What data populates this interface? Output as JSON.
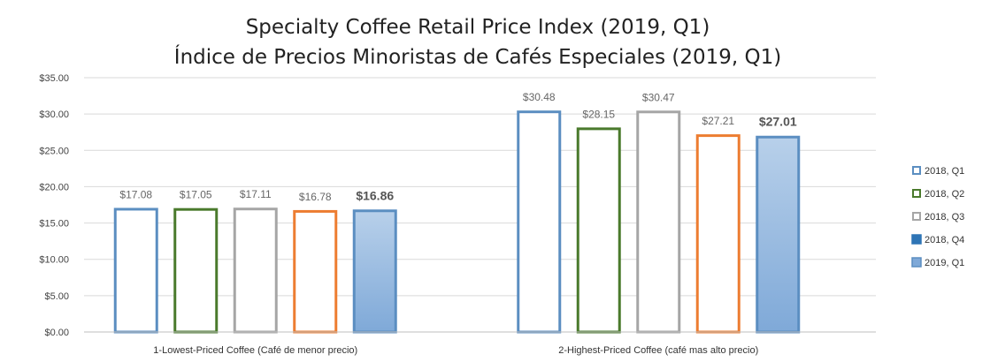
{
  "chart_data": {
    "type": "bar",
    "title": "Specialty Coffee Retail Price Index (2019, Q1)",
    "subtitle": "Índice de Precios Minoristas de Cafés Especiales (2019, Q1)",
    "categories": [
      "1-Lowest-Priced Coffee (Café de menor precio)",
      "2-Highest-Priced Coffee (café mas alto precio)"
    ],
    "series": [
      {
        "name": "2018, Q1",
        "values": [
          17.08,
          30.48
        ],
        "labels": [
          "$17.08",
          "$30.48"
        ],
        "color": "#5b8ec1",
        "style": "outline"
      },
      {
        "name": "2018, Q2",
        "values": [
          17.05,
          28.15
        ],
        "labels": [
          "$17.05",
          "$28.15"
        ],
        "color": "#4a7a2c",
        "style": "outline"
      },
      {
        "name": "2018, Q3",
        "values": [
          17.11,
          30.47
        ],
        "labels": [
          "$17.11",
          "$30.47"
        ],
        "color": "#a6a6a6",
        "style": "outline"
      },
      {
        "name": "2018, Q4",
        "values": [
          16.78,
          27.21
        ],
        "labels": [
          "$16.78",
          "$27.21"
        ],
        "color": "#ed7d31",
        "legend_color": "#2e75b6",
        "style": "outline"
      },
      {
        "name": "2019, Q1",
        "values": [
          16.86,
          27.01
        ],
        "labels": [
          "$16.86",
          "$27.01"
        ],
        "color": "#5b8ec1",
        "style": "gradient"
      }
    ],
    "ylim": [
      0,
      35
    ],
    "yticks": [
      0,
      5,
      10,
      15,
      20,
      25,
      30,
      35
    ],
    "ytick_labels": [
      "$0.00",
      "$5.00",
      "$10.00",
      "$15.00",
      "$20.00",
      "$25.00",
      "$30.00",
      "$35.00"
    ],
    "xlabel": "",
    "ylabel": "",
    "grid": true,
    "legend": "right"
  }
}
